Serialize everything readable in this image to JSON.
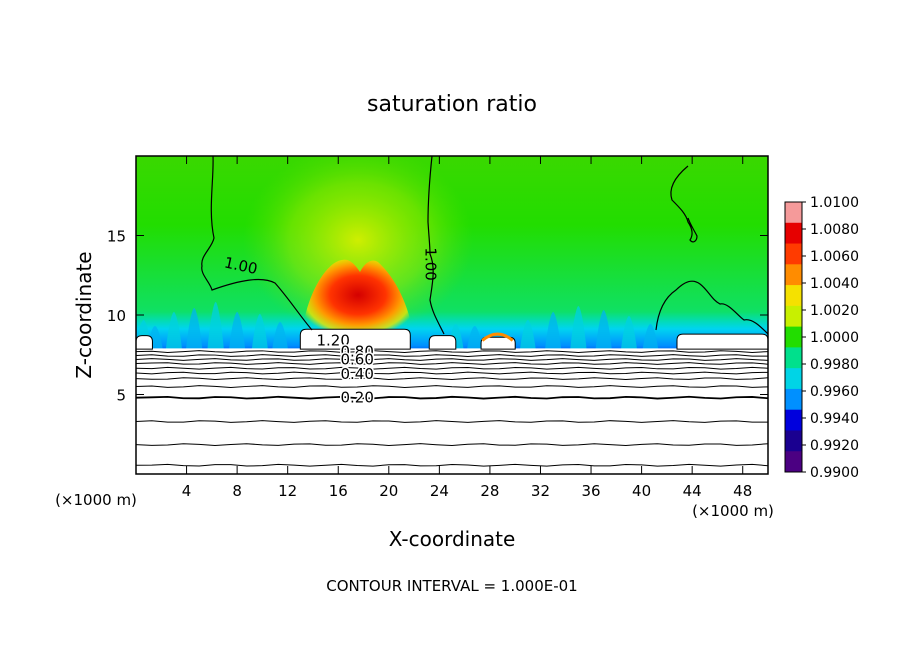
{
  "chart_data": {
    "type": "heatmap",
    "title": "saturation ratio",
    "xlabel": "X-coordinate",
    "ylabel": "Z-coordinate",
    "x_unit_label": "(×1000 m)",
    "z_unit_label": "(×1000 m)",
    "xlim": [
      0,
      50
    ],
    "ylim": [
      0,
      20
    ],
    "x_ticks": [
      4,
      8,
      12,
      16,
      20,
      24,
      28,
      32,
      36,
      40,
      44,
      48
    ],
    "y_ticks": [
      5,
      10,
      15
    ],
    "footer": "CONTOUR INTERVAL = 1.000E-01",
    "colorbar": {
      "range": [
        0.99,
        1.01
      ],
      "tick_labels": [
        "1.0100",
        "1.0080",
        "1.0060",
        "1.0040",
        "1.0020",
        "1.0000",
        "0.9980",
        "0.9960",
        "0.9940",
        "0.9920",
        "0.9900"
      ],
      "colors": [
        "#f59a9a",
        "#e60000",
        "#ff3b00",
        "#ff8c00",
        "#f5e100",
        "#c8f000",
        "#22dd00",
        "#00e08c",
        "#00d4e6",
        "#0090ff",
        "#0000dd",
        "#1a0090",
        "#4b0082"
      ]
    },
    "contour_labels": [
      {
        "text": "1.00",
        "x": 8.3,
        "z": 13.1
      },
      {
        "text": "1.00",
        "x": 23.3,
        "z": 13.2
      },
      {
        "text": "1.20",
        "x": 15.6,
        "z": 8.4
      },
      {
        "text": "0.80",
        "x": 17.5,
        "z": 7.7
      },
      {
        "text": "0.60",
        "x": 17.5,
        "z": 7.2
      },
      {
        "text": "0.40",
        "x": 17.5,
        "z": 6.3
      },
      {
        "text": "0.20",
        "x": 17.5,
        "z": 4.8
      }
    ],
    "horizontal_contours": [
      0.55,
      1.85,
      3.3,
      4.8,
      5.5,
      6.0,
      6.35,
      6.65,
      6.95,
      7.2,
      7.45,
      7.7
    ],
    "features": {
      "updraft_peak": {
        "x": 17.5,
        "z": 10.6
      },
      "boundary_layer_top": 8.3,
      "dry_blobs": [
        {
          "x": [
            0,
            1.3
          ],
          "z_top": 8.7
        },
        {
          "x": [
            13,
            21.7
          ],
          "z_top": 9.1
        },
        {
          "x": [
            23.2,
            25.3
          ],
          "z_top": 8.7
        },
        {
          "x": [
            27.3,
            30
          ],
          "z_top": 8.6
        },
        {
          "x": [
            42.8,
            50
          ],
          "z_top": 8.8
        }
      ]
    }
  }
}
